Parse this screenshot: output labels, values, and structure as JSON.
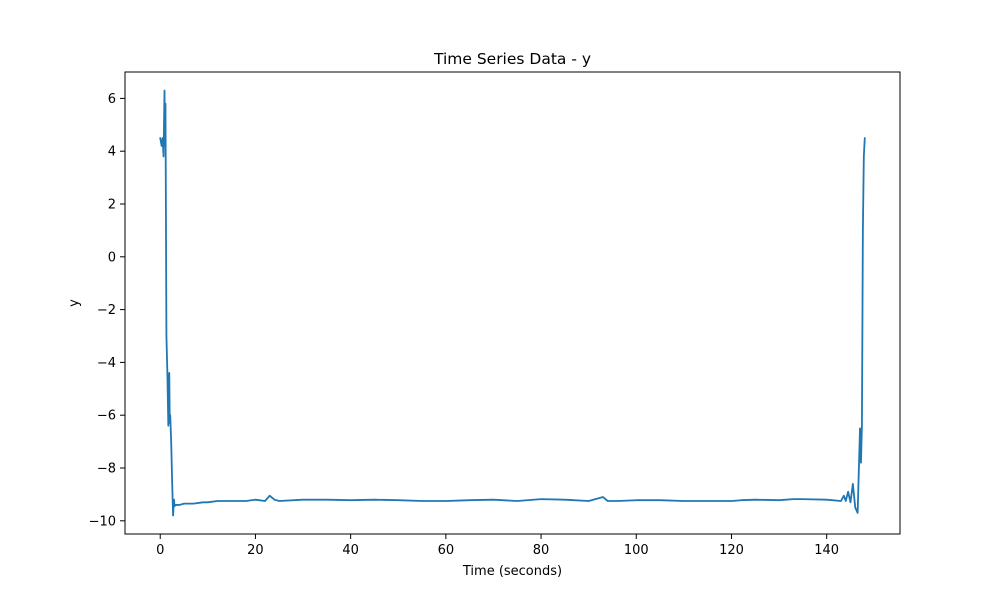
{
  "chart_data": {
    "type": "line",
    "title": "Time Series Data - y",
    "xlabel": "Time (seconds)",
    "ylabel": "y",
    "xlim": [
      -7.4,
      155.4
    ],
    "ylim": [
      -10.5,
      7.0
    ],
    "xticks": [
      0,
      20,
      40,
      60,
      80,
      100,
      120,
      140
    ],
    "xtick_labels": [
      "0",
      "20",
      "40",
      "60",
      "80",
      "100",
      "120",
      "140"
    ],
    "yticks": [
      6,
      4,
      2,
      0,
      -2,
      -4,
      -6,
      -8,
      -10
    ],
    "ytick_labels": [
      "6",
      "4",
      "2",
      "0",
      "−2",
      "−4",
      "−6",
      "−8",
      "−10"
    ],
    "grid": false,
    "legend": "none",
    "series": [
      {
        "color": "#1f77b4",
        "x": [
          0.0,
          0.3,
          0.5,
          0.7,
          0.9,
          1.0,
          1.1,
          1.2,
          1.3,
          1.5,
          1.7,
          1.9,
          2.0,
          2.1,
          2.3,
          2.5,
          2.7,
          2.9,
          3.0,
          3.2,
          4.0,
          5.0,
          7.0,
          9.0,
          10.0,
          12.0,
          15.0,
          18.0,
          20.0,
          22.0,
          23.0,
          24.0,
          25.0,
          30.0,
          35.0,
          40.0,
          45.0,
          50.0,
          55.0,
          60.0,
          65.0,
          70.0,
          75.0,
          80.0,
          85.0,
          90.0,
          92.0,
          93.0,
          94.0,
          96.0,
          100.0,
          105.0,
          110.0,
          115.0,
          120.0,
          122.0,
          125.0,
          130.0,
          133.0,
          135.0,
          140.0,
          143.0,
          143.6,
          144.0,
          144.5,
          145.0,
          145.5,
          146.0,
          146.5,
          147.0,
          147.2,
          147.4,
          147.6,
          147.8,
          148.0
        ],
        "y": [
          4.5,
          4.2,
          4.5,
          3.8,
          6.3,
          4.2,
          5.8,
          1.5,
          -3.0,
          -4.4,
          -6.4,
          -4.4,
          -6.3,
          -6.0,
          -7.0,
          -8.5,
          -9.8,
          -9.2,
          -9.45,
          -9.4,
          -9.4,
          -9.35,
          -9.35,
          -9.3,
          -9.3,
          -9.25,
          -9.25,
          -9.25,
          -9.2,
          -9.25,
          -9.05,
          -9.2,
          -9.25,
          -9.2,
          -9.2,
          -9.22,
          -9.2,
          -9.22,
          -9.25,
          -9.25,
          -9.22,
          -9.2,
          -9.25,
          -9.18,
          -9.2,
          -9.25,
          -9.15,
          -9.1,
          -9.25,
          -9.25,
          -9.22,
          -9.22,
          -9.25,
          -9.25,
          -9.25,
          -9.22,
          -9.2,
          -9.22,
          -9.18,
          -9.18,
          -9.2,
          -9.25,
          -9.05,
          -9.25,
          -8.9,
          -9.3,
          -8.6,
          -9.5,
          -9.7,
          -6.5,
          -7.8,
          -6.4,
          1.0,
          3.8,
          4.5
        ]
      }
    ]
  }
}
